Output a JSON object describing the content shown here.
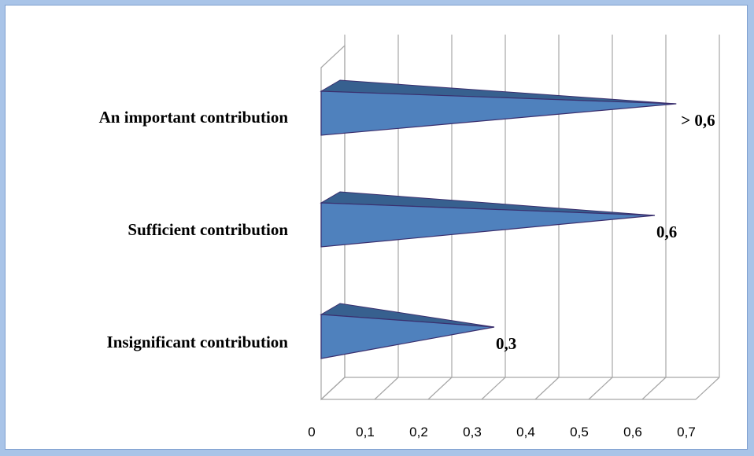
{
  "chart_data": {
    "type": "bar",
    "orientation": "horizontal",
    "style": "3d-cone",
    "categories": [
      "Insignificant contribution",
      "Sufficient contribution",
      "An important contribution"
    ],
    "values": [
      0.3,
      0.6,
      0.64
    ],
    "data_labels": [
      "0,3",
      "0,6",
      "> 0,6"
    ],
    "x_ticks": [
      "0",
      "0,1",
      "0,2",
      "0,3",
      "0,4",
      "0,5",
      "0,6",
      "0,7"
    ],
    "xlim": [
      0,
      0.7
    ],
    "grid": true,
    "legend": false,
    "colors": {
      "bar_front": "#4f81bd",
      "bar_top": "#37608f",
      "bar_edge": "#3a2f6e",
      "grid": "#a6a6a6",
      "page_border": "#a9c4e8"
    }
  }
}
